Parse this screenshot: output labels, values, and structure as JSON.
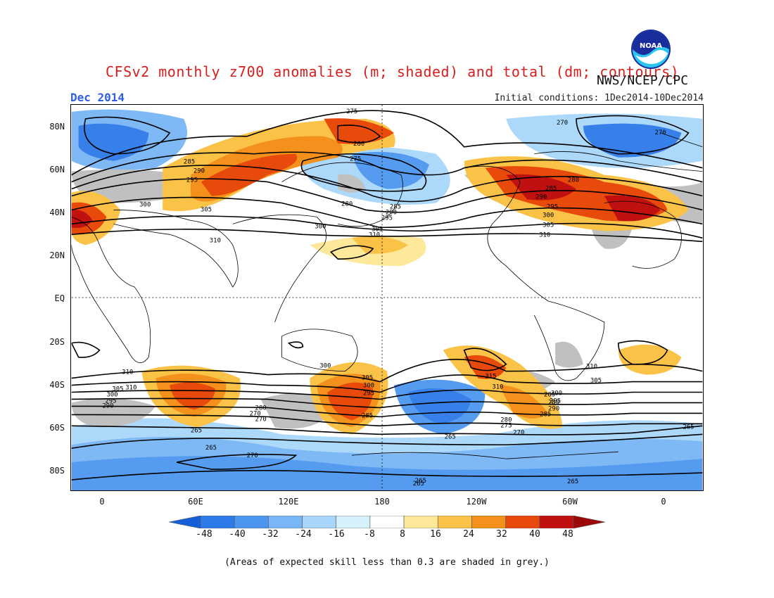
{
  "title": "CFSv2 monthly z700 anomalies (m; shaded) and total (dm; contours)",
  "month": "Dec 2014",
  "initial_conditions": "Initial conditions: 1Dec2014-10Dec2014",
  "agency": "NWS/NCEP/CPC",
  "logo_text": "NOAA",
  "lat_labels": [
    "80N",
    "60N",
    "40N",
    "20N",
    "EQ",
    "20S",
    "40S",
    "60S",
    "80S"
  ],
  "lon_labels": [
    "0",
    "60E",
    "120E",
    "180",
    "120W",
    "60W",
    "0"
  ],
  "colorbar_labels": [
    "-48",
    "-40",
    "-32",
    "-24",
    "-16",
    "-8",
    "8",
    "16",
    "24",
    "32",
    "40",
    "48"
  ],
  "colorbar_colors": [
    "#1460d8",
    "#2d7ae8",
    "#4c96f0",
    "#78b6f6",
    "#a8d6fa",
    "#d6f0fc",
    "#ffffff",
    "#fee89a",
    "#fbc248",
    "#f4901c",
    "#e84a0c",
    "#c01010",
    "#9a0808"
  ],
  "contour_labels": [
    "275",
    "270",
    "270",
    "280",
    "275",
    "285",
    "290",
    "295",
    "300",
    "305",
    "310",
    "280",
    "285",
    "290",
    "295",
    "300",
    "305",
    "310",
    "280",
    "285",
    "290",
    "295",
    "300",
    "305",
    "310",
    "300",
    "310",
    "310",
    "315",
    "310",
    "305",
    "300",
    "295",
    "290",
    "285",
    "280",
    "275",
    "270",
    "265",
    "265",
    "270",
    "265",
    "265",
    "265",
    "305",
    "300",
    "295",
    "285",
    "280",
    "270",
    "310",
    "305",
    "300",
    "295",
    "290",
    "285",
    "280",
    "270",
    "265",
    "265"
  ],
  "footnote": "(Areas of expected skill less than 0.3 are shaded in grey.)",
  "colors": {
    "title": "#d42020",
    "month": "#2d5fe0",
    "skill_grey": "#c0c0c0"
  }
}
